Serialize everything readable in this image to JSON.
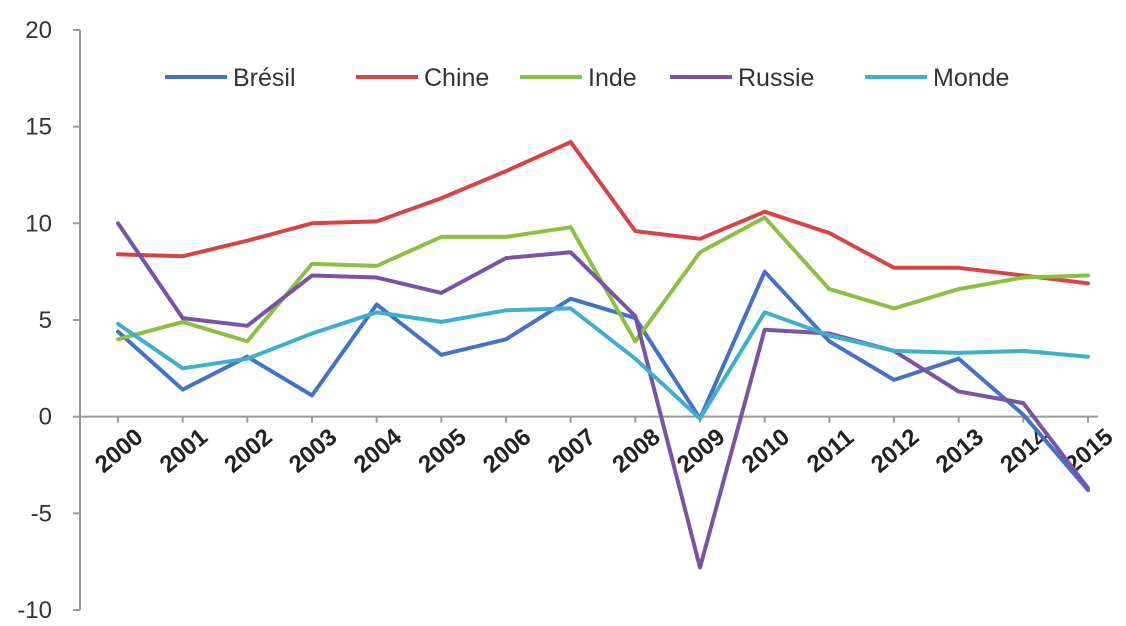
{
  "chart_data": {
    "type": "line",
    "title": "",
    "xlabel": "",
    "ylabel": "",
    "ylim": [
      -10,
      20
    ],
    "y_ticks": [
      "20",
      "15",
      "10",
      "5",
      "0",
      "-5",
      "-10"
    ],
    "y_tick_values": [
      20,
      15,
      10,
      5,
      0,
      -5,
      -10
    ],
    "categories": [
      "2000",
      "2001",
      "2002",
      "2003",
      "2004",
      "2005",
      "2006",
      "2007",
      "2008",
      "2009",
      "2010",
      "2011",
      "2012",
      "2013",
      "2014",
      "2015"
    ],
    "legend_position": "top",
    "grid": false,
    "series": [
      {
        "name": "Brésil",
        "color": "#4472c4",
        "values": [
          4.4,
          1.4,
          3.1,
          1.1,
          5.8,
          3.2,
          4.0,
          6.1,
          5.1,
          -0.1,
          7.5,
          3.9,
          1.9,
          3.0,
          0.1,
          -3.8
        ]
      },
      {
        "name": "Chine",
        "color": "#d64545",
        "values": [
          8.4,
          8.3,
          9.1,
          10.0,
          10.1,
          11.3,
          12.7,
          14.2,
          9.6,
          9.2,
          10.6,
          9.5,
          7.7,
          7.7,
          7.3,
          6.9
        ]
      },
      {
        "name": "Inde",
        "color": "#8cbf42",
        "values": [
          4.0,
          4.9,
          3.9,
          7.9,
          7.8,
          9.3,
          9.3,
          9.8,
          3.9,
          8.5,
          10.3,
          6.6,
          5.6,
          6.6,
          7.2,
          7.3
        ]
      },
      {
        "name": "Russie",
        "color": "#7a53a6",
        "values": [
          10.0,
          5.1,
          4.7,
          7.3,
          7.2,
          6.4,
          8.2,
          8.5,
          5.2,
          -7.8,
          4.5,
          4.3,
          3.4,
          1.3,
          0.7,
          -3.7
        ]
      },
      {
        "name": "Monde",
        "color": "#3eb0cc",
        "values": [
          4.8,
          2.5,
          3.0,
          4.3,
          5.4,
          4.9,
          5.5,
          5.6,
          3.0,
          -0.1,
          5.4,
          4.2,
          3.4,
          3.3,
          3.4,
          3.1
        ]
      }
    ]
  }
}
